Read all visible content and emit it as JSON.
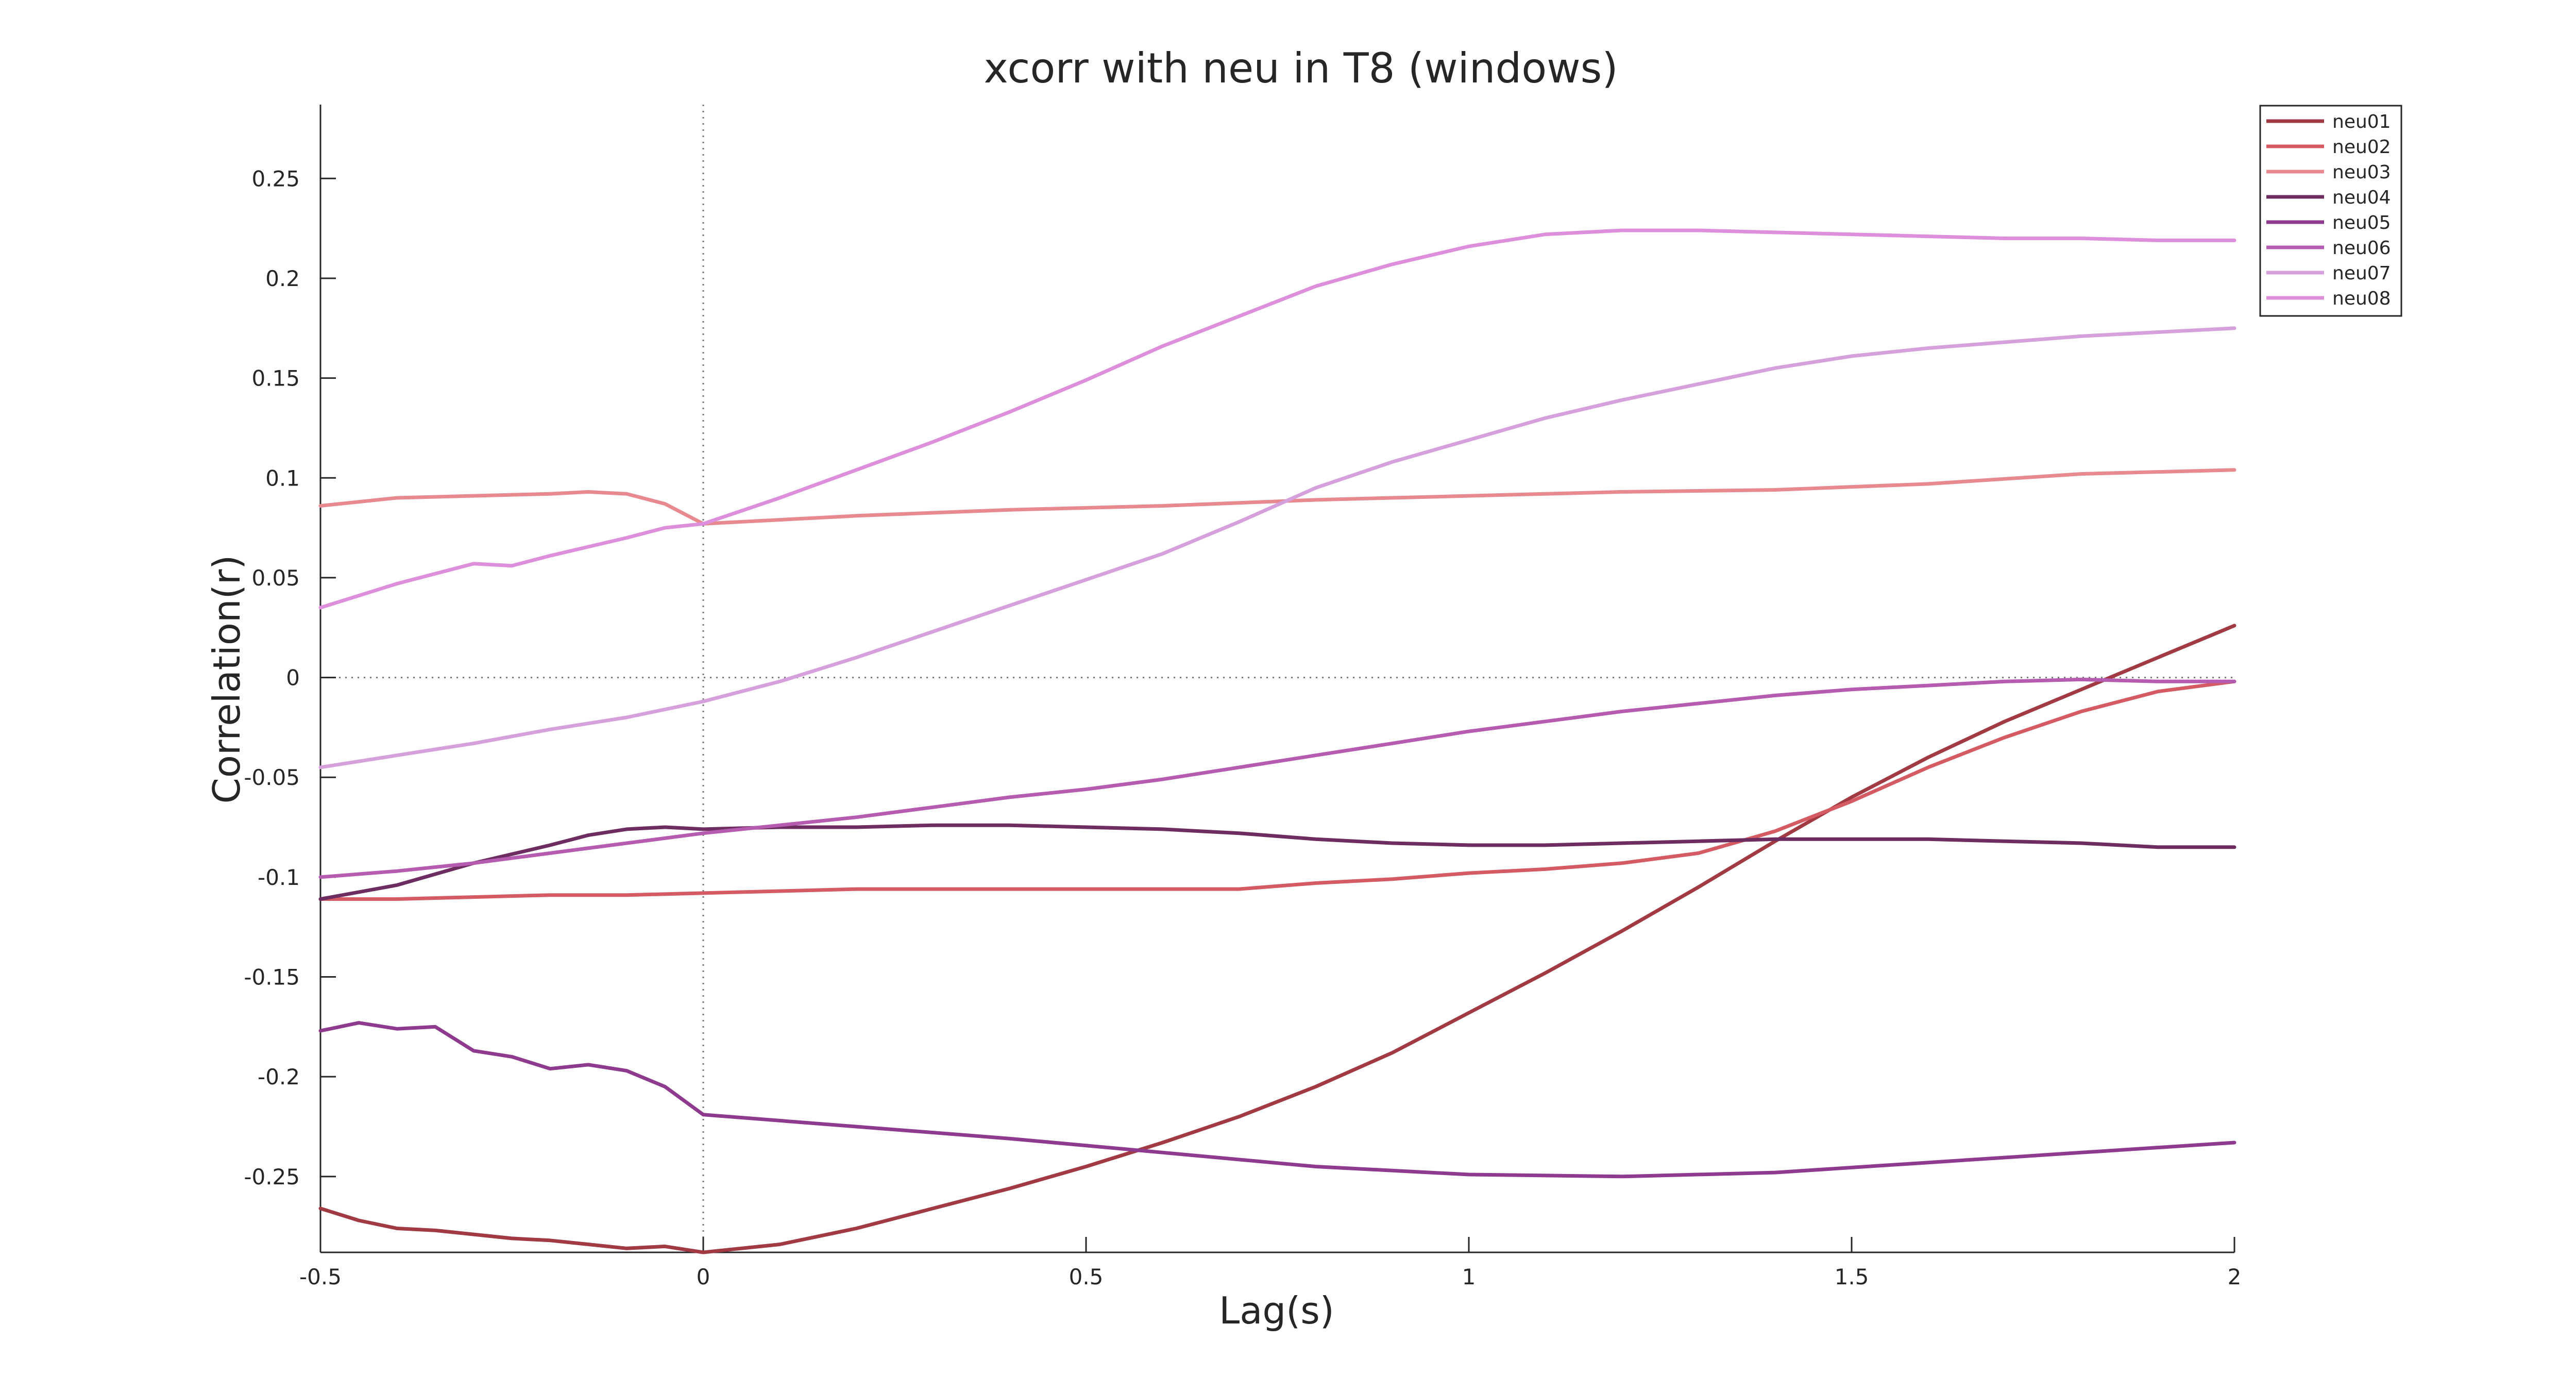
{
  "chart_data": {
    "type": "line",
    "title": "xcorr with neu in T8 (windows)",
    "xlabel": "Lag(s)",
    "ylabel": "Correlation(r)",
    "xlim": [
      -0.5,
      2
    ],
    "ylim": [
      -0.288,
      0.287
    ],
    "xticks": [
      -0.5,
      0,
      0.5,
      1,
      1.5,
      2
    ],
    "xtick_labels": [
      "-0.5",
      "0",
      "0.5",
      "1",
      "1.5",
      "2"
    ],
    "yticks": [
      0.25,
      0.2,
      0.15,
      0.1,
      0.05,
      0,
      -0.05,
      -0.1,
      -0.15,
      -0.2,
      -0.25
    ],
    "ytick_labels": [
      "0.25",
      "0.2",
      "0.15",
      "0.1",
      "0.05",
      "0",
      "-0.05",
      "-0.1",
      "-0.15",
      "-0.2",
      "-0.25"
    ],
    "grid": false,
    "reference_lines": [
      {
        "axis": "x",
        "value": 0,
        "style": "dotted"
      },
      {
        "axis": "y",
        "value": 0,
        "style": "dotted"
      }
    ],
    "legend_position": "top-right",
    "series": [
      {
        "name": "neu01",
        "color": "#a13a43",
        "x": [
          -0.5,
          -0.45,
          -0.4,
          -0.35,
          -0.3,
          -0.25,
          -0.2,
          -0.15,
          -0.1,
          -0.05,
          0,
          0.1,
          0.2,
          0.3,
          0.4,
          0.5,
          0.6,
          0.7,
          0.8,
          0.9,
          1,
          1.1,
          1.2,
          1.3,
          1.4,
          1.5,
          1.6,
          1.7,
          1.8,
          1.9,
          2
        ],
        "y": [
          -0.266,
          -0.272,
          -0.276,
          -0.277,
          -0.279,
          -0.281,
          -0.282,
          -0.284,
          -0.286,
          -0.285,
          -0.288,
          -0.284,
          -0.276,
          -0.266,
          -0.256,
          -0.245,
          -0.233,
          -0.22,
          -0.205,
          -0.188,
          -0.168,
          -0.148,
          -0.127,
          -0.105,
          -0.082,
          -0.06,
          -0.04,
          -0.022,
          -0.006,
          0.01,
          0.026
        ]
      },
      {
        "name": "neu02",
        "color": "#d45a63",
        "x": [
          -0.5,
          -0.4,
          -0.3,
          -0.2,
          -0.1,
          0,
          0.1,
          0.2,
          0.3,
          0.4,
          0.5,
          0.6,
          0.7,
          0.8,
          0.9,
          1,
          1.1,
          1.2,
          1.3,
          1.4,
          1.5,
          1.6,
          1.7,
          1.8,
          1.9,
          2
        ],
        "y": [
          -0.111,
          -0.111,
          -0.11,
          -0.109,
          -0.109,
          -0.108,
          -0.107,
          -0.106,
          -0.106,
          -0.106,
          -0.106,
          -0.106,
          -0.106,
          -0.103,
          -0.101,
          -0.098,
          -0.096,
          -0.093,
          -0.088,
          -0.077,
          -0.062,
          -0.045,
          -0.03,
          -0.017,
          -0.007,
          -0.002
        ]
      },
      {
        "name": "neu03",
        "color": "#e8898f",
        "x": [
          -0.5,
          -0.4,
          -0.3,
          -0.2,
          -0.15,
          -0.1,
          -0.05,
          0,
          0.2,
          0.4,
          0.6,
          0.8,
          1,
          1.2,
          1.4,
          1.6,
          1.8,
          2
        ],
        "y": [
          0.086,
          0.09,
          0.091,
          0.092,
          0.093,
          0.092,
          0.087,
          0.077,
          0.081,
          0.084,
          0.086,
          0.089,
          0.091,
          0.093,
          0.094,
          0.097,
          0.102,
          0.104
        ]
      },
      {
        "name": "neu04",
        "color": "#6e2d60",
        "x": [
          -0.5,
          -0.4,
          -0.3,
          -0.2,
          -0.15,
          -0.1,
          -0.05,
          0,
          0.1,
          0.2,
          0.3,
          0.4,
          0.5,
          0.6,
          0.7,
          0.8,
          0.9,
          1,
          1.1,
          1.2,
          1.3,
          1.4,
          1.5,
          1.6,
          1.7,
          1.8,
          1.9,
          2
        ],
        "y": [
          -0.111,
          -0.104,
          -0.093,
          -0.084,
          -0.079,
          -0.076,
          -0.075,
          -0.076,
          -0.075,
          -0.075,
          -0.074,
          -0.074,
          -0.075,
          -0.076,
          -0.078,
          -0.081,
          -0.083,
          -0.084,
          -0.084,
          -0.083,
          -0.082,
          -0.081,
          -0.081,
          -0.081,
          -0.082,
          -0.083,
          -0.085,
          -0.085
        ]
      },
      {
        "name": "neu05",
        "color": "#8e3b8f",
        "x": [
          -0.5,
          -0.45,
          -0.4,
          -0.35,
          -0.3,
          -0.25,
          -0.2,
          -0.15,
          -0.1,
          -0.05,
          0,
          0.2,
          0.4,
          0.6,
          0.8,
          1,
          1.2,
          1.4,
          1.6,
          1.8,
          2
        ],
        "y": [
          -0.177,
          -0.173,
          -0.176,
          -0.175,
          -0.187,
          -0.19,
          -0.196,
          -0.194,
          -0.197,
          -0.205,
          -0.219,
          -0.225,
          -0.231,
          -0.238,
          -0.245,
          -0.249,
          -0.25,
          -0.248,
          -0.243,
          -0.238,
          -0.233
        ]
      },
      {
        "name": "neu06",
        "color": "#b55bb0",
        "x": [
          -0.5,
          -0.4,
          -0.3,
          -0.2,
          -0.1,
          0,
          0.1,
          0.2,
          0.3,
          0.4,
          0.5,
          0.6,
          0.7,
          0.8,
          0.9,
          1,
          1.1,
          1.2,
          1.3,
          1.4,
          1.5,
          1.6,
          1.7,
          1.8,
          1.9,
          2
        ],
        "y": [
          -0.1,
          -0.097,
          -0.093,
          -0.088,
          -0.083,
          -0.078,
          -0.074,
          -0.07,
          -0.065,
          -0.06,
          -0.056,
          -0.051,
          -0.045,
          -0.039,
          -0.033,
          -0.027,
          -0.022,
          -0.017,
          -0.013,
          -0.009,
          -0.006,
          -0.004,
          -0.002,
          -0.001,
          -0.002,
          -0.002
        ]
      },
      {
        "name": "neu07",
        "color": "#d6a0dc",
        "x": [
          -0.5,
          -0.4,
          -0.3,
          -0.2,
          -0.1,
          0,
          0.1,
          0.2,
          0.3,
          0.4,
          0.5,
          0.6,
          0.7,
          0.8,
          0.9,
          1,
          1.1,
          1.2,
          1.3,
          1.4,
          1.5,
          1.6,
          1.7,
          1.8,
          1.9,
          2
        ],
        "y": [
          -0.045,
          -0.039,
          -0.033,
          -0.026,
          -0.02,
          -0.012,
          -0.002,
          0.01,
          0.023,
          0.036,
          0.049,
          0.062,
          0.078,
          0.095,
          0.108,
          0.119,
          0.13,
          0.139,
          0.147,
          0.155,
          0.161,
          0.165,
          0.168,
          0.171,
          0.173,
          0.175
        ]
      },
      {
        "name": "neu08",
        "color": "#dd8fdc",
        "x": [
          -0.5,
          -0.4,
          -0.3,
          -0.25,
          -0.2,
          -0.1,
          -0.05,
          0,
          0.1,
          0.2,
          0.3,
          0.4,
          0.5,
          0.6,
          0.7,
          0.8,
          0.9,
          1,
          1.1,
          1.2,
          1.3,
          1.4,
          1.5,
          1.6,
          1.7,
          1.8,
          1.9,
          2
        ],
        "y": [
          0.035,
          0.047,
          0.057,
          0.056,
          0.061,
          0.07,
          0.075,
          0.077,
          0.09,
          0.104,
          0.118,
          0.133,
          0.149,
          0.166,
          0.181,
          0.196,
          0.207,
          0.216,
          0.222,
          0.224,
          0.224,
          0.223,
          0.222,
          0.221,
          0.22,
          0.22,
          0.219,
          0.219
        ]
      }
    ]
  }
}
